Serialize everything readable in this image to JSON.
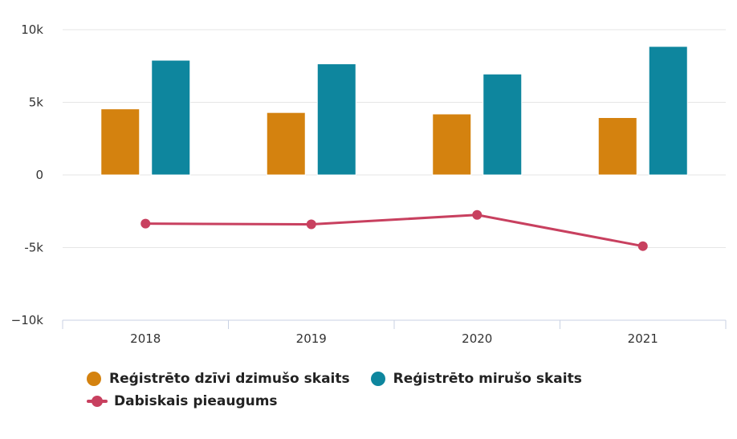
{
  "chart_data": {
    "type": "bar",
    "categories": [
      "2018",
      "2019",
      "2020",
      "2021"
    ],
    "series": [
      {
        "name": "Reģistrēto dzīvi dzimušo skaits",
        "type": "bar",
        "color": "#d4820f",
        "values": [
          4550,
          4300,
          4200,
          3950
        ]
      },
      {
        "name": "Reģistrēto mirušo skaits",
        "type": "bar",
        "color": "#0e869e",
        "values": [
          7900,
          7650,
          6950,
          8850
        ]
      },
      {
        "name": "Dabiskais pieaugums",
        "type": "line",
        "color": "#c8405f",
        "values": [
          -3350,
          -3400,
          -2750,
          -4900
        ]
      }
    ],
    "ylim": [
      -10000,
      10000
    ],
    "yticks": [
      {
        "value": 10000,
        "label": "10k"
      },
      {
        "value": 5000,
        "label": "5k"
      },
      {
        "value": 0,
        "label": "0"
      },
      {
        "value": -5000,
        "label": "-5k"
      },
      {
        "value": -10000,
        "label": "−10k"
      }
    ],
    "grid": true,
    "legend_position": "bottom-left"
  },
  "legend": {
    "births_label": "Reģistrēto dzīvi dzimušo skaits",
    "deaths_label": "Reģistrēto mirušo skaits",
    "natural_growth_label": "Dabiskais pieaugums"
  }
}
